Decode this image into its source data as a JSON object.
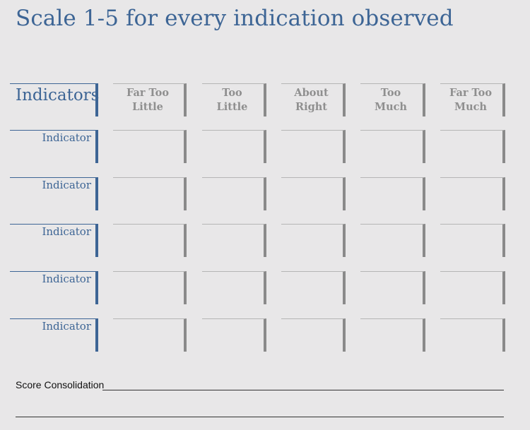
{
  "title": "Scale 1-5 for every indication observed",
  "header": {
    "row_label": "Indicators",
    "columns": [
      {
        "line1": "Far Too",
        "line2": "Little"
      },
      {
        "line1": "Too",
        "line2": "Little"
      },
      {
        "line1": "About",
        "line2": "Right"
      },
      {
        "line1": "Too",
        "line2": "Much"
      },
      {
        "line1": "Far Too",
        "line2": "Much"
      }
    ]
  },
  "rows": [
    {
      "label": "Indicator"
    },
    {
      "label": "Indicator"
    },
    {
      "label": "Indicator"
    },
    {
      "label": "Indicator"
    },
    {
      "label": "Indicator"
    }
  ],
  "footer": {
    "label": "Score Consolidation"
  },
  "colors": {
    "accent": "#3d6595",
    "muted": "#8a8a8a",
    "background": "#e8e7e8"
  }
}
